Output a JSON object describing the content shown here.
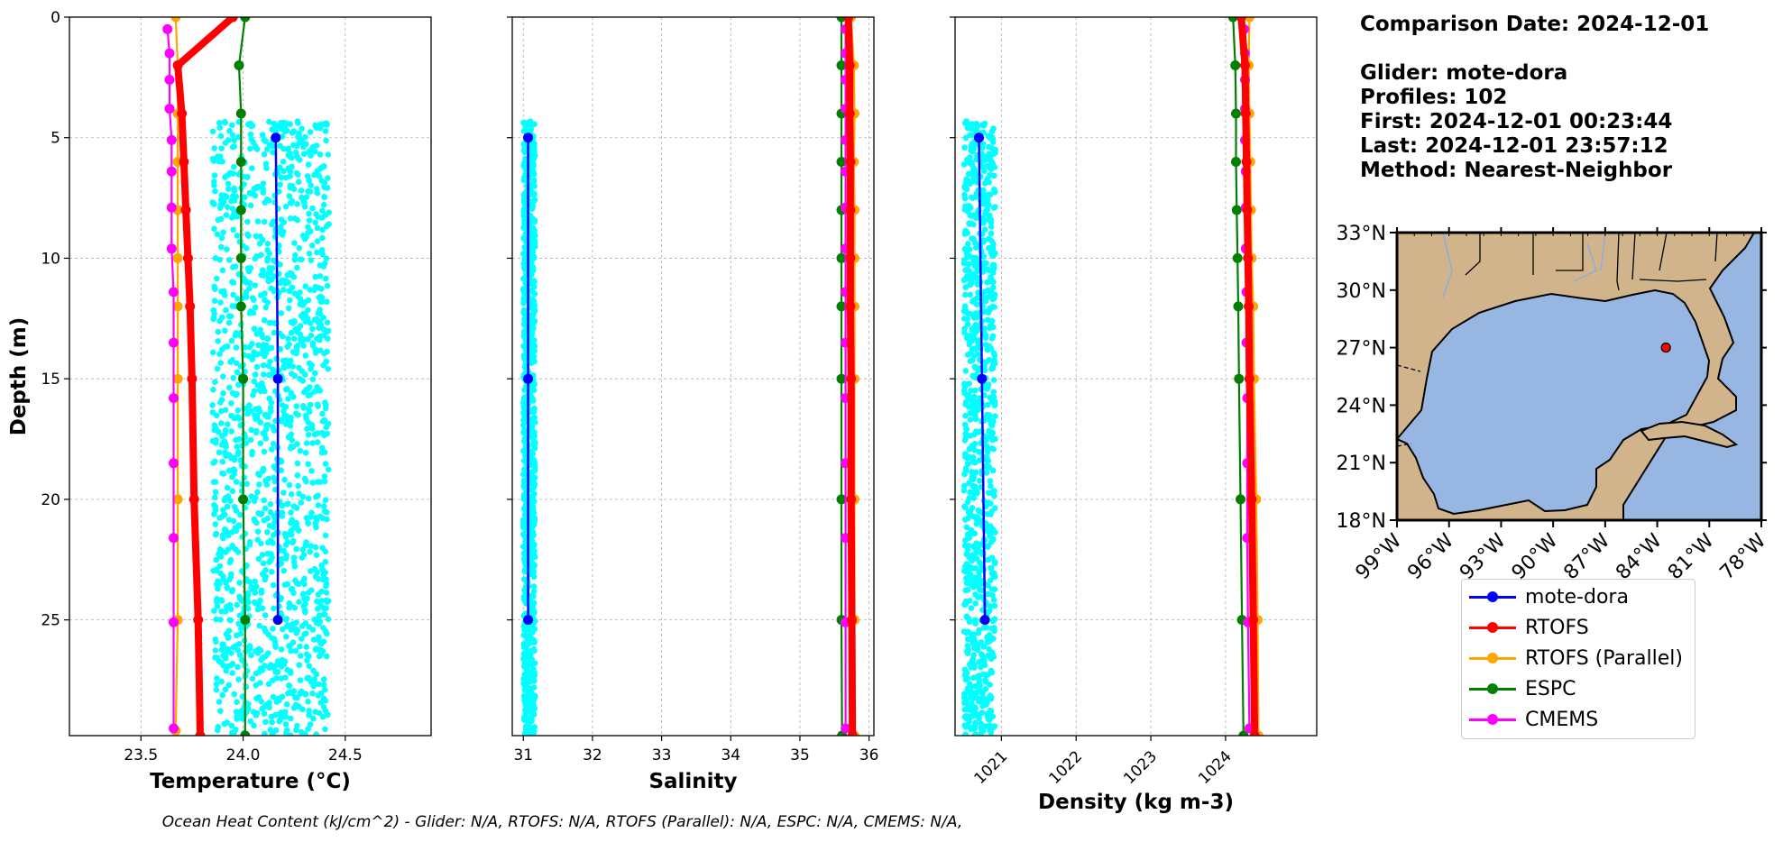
{
  "info": {
    "comparison_date": "Comparison Date: 2024-12-01",
    "glider": "Glider: mote-dora",
    "profiles": "Profiles: 102",
    "first": "First: 2024-12-01 00:23:44",
    "last": "Last: 2024-12-01 23:57:12",
    "method": "Method: Nearest-Neighbor"
  },
  "footer": "Ocean Heat Content (kJ/cm^2) - Glider: N/A,  RTOFS: N/A,  RTOFS (Parallel): N/A,  ESPC: N/A,  CMEMS: N/A,",
  "colors": {
    "glider_raw": "#00ffff",
    "mote-dora": "#0000ff",
    "RTOFS": "#ff0000",
    "RTOFS (Parallel)": "#ffa500",
    "ESPC": "#008000",
    "CMEMS": "#ff00ff",
    "land": "#d2b48c",
    "ocean": "#97b6e1",
    "grid": "#b0b0b0"
  },
  "legend": [
    {
      "label": "mote-dora",
      "color": "#0000ff"
    },
    {
      "label": "RTOFS",
      "color": "#ff0000"
    },
    {
      "label": "RTOFS (Parallel)",
      "color": "#ffa500"
    },
    {
      "label": "ESPC",
      "color": "#008000"
    },
    {
      "label": "CMEMS",
      "color": "#ff00ff"
    }
  ],
  "chart_data": [
    {
      "type": "line",
      "xlabel": "Temperature ($^o C$)",
      "xlabel_display": "Temperature (°C)",
      "ylabel": "Depth (m)",
      "xlim": [
        23.15,
        24.92
      ],
      "ylim": [
        29.8,
        0
      ],
      "xticks": [
        23.5,
        24.0,
        24.5
      ],
      "xtick_labels": [
        "23.5",
        "24.0",
        "24.5"
      ],
      "yticks": [
        0,
        5,
        10,
        15,
        20,
        25
      ],
      "ytick_labels": [
        "0",
        "5",
        "10",
        "15",
        "20",
        "25"
      ],
      "grid": true,
      "raw_scatter": {
        "name": "glider raw",
        "x_range": [
          23.85,
          24.42
        ],
        "depth_range": [
          4.3,
          29.8
        ]
      },
      "series": [
        {
          "name": "mote-dora",
          "depth": [
            5,
            15,
            25
          ],
          "values": [
            24.16,
            24.17,
            24.17
          ]
        },
        {
          "name": "RTOFS",
          "depth": [
            0,
            2,
            4,
            6,
            8,
            10,
            12,
            15,
            20,
            25,
            29.8
          ],
          "values": [
            23.95,
            23.68,
            23.7,
            23.71,
            23.72,
            23.73,
            23.74,
            23.75,
            23.76,
            23.78,
            23.79
          ]
        },
        {
          "name": "RTOFS (Parallel)",
          "depth": [
            0,
            2,
            4,
            6,
            8,
            10,
            12,
            15,
            20,
            25,
            29.6
          ],
          "values": [
            23.67,
            23.68,
            23.68,
            23.68,
            23.68,
            23.68,
            23.68,
            23.68,
            23.68,
            23.68,
            23.67
          ]
        },
        {
          "name": "ESPC",
          "depth": [
            0,
            2,
            4,
            6,
            8,
            10,
            12,
            15,
            20,
            25,
            29.8
          ],
          "values": [
            24.01,
            23.98,
            23.99,
            23.99,
            23.99,
            23.99,
            23.99,
            24.0,
            24.0,
            24.01,
            24.01
          ]
        },
        {
          "name": "CMEMS",
          "depth": [
            0.5,
            1.5,
            2.6,
            3.8,
            5.1,
            6.4,
            7.9,
            9.6,
            11.4,
            13.5,
            15.8,
            18.5,
            21.6,
            25.1,
            29.5
          ],
          "values": [
            23.63,
            23.64,
            23.64,
            23.64,
            23.65,
            23.65,
            23.65,
            23.65,
            23.66,
            23.66,
            23.66,
            23.66,
            23.66,
            23.66,
            23.66
          ]
        }
      ]
    },
    {
      "type": "line",
      "xlabel": "Salinity",
      "ylabel": "",
      "xlim": [
        30.84,
        36.07
      ],
      "ylim": [
        29.8,
        0
      ],
      "xticks": [
        31,
        32,
        33,
        34,
        35,
        36
      ],
      "xtick_labels": [
        "31",
        "32",
        "33",
        "34",
        "35",
        "36"
      ],
      "yticks": [
        0,
        5,
        10,
        15,
        20,
        25
      ],
      "grid": true,
      "raw_scatter": {
        "name": "glider raw",
        "x_range": [
          31.0,
          31.17
        ],
        "depth_range": [
          4.3,
          29.8
        ]
      },
      "series": [
        {
          "name": "mote-dora",
          "depth": [
            5,
            15,
            25
          ],
          "values": [
            31.07,
            31.07,
            31.07
          ]
        },
        {
          "name": "RTOFS",
          "depth": [
            0,
            2,
            4,
            6,
            8,
            10,
            12,
            15,
            20,
            25,
            29.8
          ],
          "values": [
            35.7,
            35.72,
            35.72,
            35.73,
            35.73,
            35.73,
            35.73,
            35.74,
            35.74,
            35.75,
            35.76
          ]
        },
        {
          "name": "RTOFS (Parallel)",
          "depth": [
            0,
            2,
            4,
            6,
            8,
            10,
            12,
            15,
            20,
            25,
            29.8
          ],
          "values": [
            35.74,
            35.78,
            35.79,
            35.78,
            35.79,
            35.79,
            35.79,
            35.79,
            35.79,
            35.79,
            35.79
          ]
        },
        {
          "name": "ESPC",
          "depth": [
            0,
            2,
            4,
            6,
            8,
            10,
            12,
            15,
            20,
            25,
            29.8
          ],
          "values": [
            35.6,
            35.6,
            35.6,
            35.6,
            35.6,
            35.6,
            35.6,
            35.6,
            35.6,
            35.6,
            35.61
          ]
        },
        {
          "name": "CMEMS",
          "depth": [
            0.5,
            1.5,
            2.6,
            3.8,
            5.1,
            6.4,
            7.9,
            9.6,
            11.4,
            13.5,
            15.8,
            18.5,
            21.6,
            25.1,
            29.5
          ],
          "values": [
            35.66,
            35.66,
            35.66,
            35.66,
            35.66,
            35.66,
            35.66,
            35.66,
            35.66,
            35.66,
            35.66,
            35.66,
            35.66,
            35.66,
            35.66
          ]
        }
      ]
    },
    {
      "type": "line",
      "xlabel": "Density (kg m-3)",
      "ylabel": "",
      "xlim": [
        1020.38,
        1025.22
      ],
      "ylim": [
        29.8,
        0
      ],
      "xticks": [
        1021,
        1022,
        1023,
        1024
      ],
      "xtick_labels": [
        "1021",
        "1022",
        "1023",
        "1024"
      ],
      "yticks": [
        0,
        5,
        10,
        15,
        20,
        25
      ],
      "grid": true,
      "raw_scatter": {
        "name": "glider raw",
        "x_range": [
          1020.5,
          1020.92
        ],
        "depth_range": [
          4.3,
          29.8
        ]
      },
      "series": [
        {
          "name": "mote-dora",
          "depth": [
            5,
            15,
            25
          ],
          "values": [
            1020.7,
            1020.74,
            1020.78
          ]
        },
        {
          "name": "RTOFS",
          "depth": [
            0,
            2,
            4,
            6,
            8,
            10,
            12,
            15,
            20,
            25,
            29.8
          ],
          "values": [
            1024.21,
            1024.26,
            1024.27,
            1024.28,
            1024.29,
            1024.3,
            1024.31,
            1024.32,
            1024.35,
            1024.37,
            1024.39
          ]
        },
        {
          "name": "RTOFS (Parallel)",
          "depth": [
            0,
            2,
            4,
            6,
            8,
            10,
            12,
            15,
            20,
            25,
            29.8
          ],
          "values": [
            1024.32,
            1024.31,
            1024.32,
            1024.33,
            1024.34,
            1024.35,
            1024.37,
            1024.38,
            1024.41,
            1024.43,
            1024.44
          ]
        },
        {
          "name": "ESPC",
          "depth": [
            0,
            2,
            4,
            6,
            8,
            10,
            12,
            15,
            20,
            25,
            29.8
          ],
          "values": [
            1024.1,
            1024.13,
            1024.14,
            1024.14,
            1024.15,
            1024.16,
            1024.17,
            1024.18,
            1024.2,
            1024.22,
            1024.24
          ]
        },
        {
          "name": "CMEMS",
          "depth": [
            0.5,
            1.5,
            2.6,
            3.8,
            5.1,
            6.4,
            7.9,
            9.6,
            11.4,
            13.5,
            15.8,
            18.5,
            21.6,
            25.1,
            29.5
          ],
          "values": [
            1024.25,
            1024.26,
            1024.26,
            1024.26,
            1024.26,
            1024.27,
            1024.27,
            1024.27,
            1024.28,
            1024.28,
            1024.29,
            1024.29,
            1024.29,
            1024.3,
            1024.32
          ]
        }
      ]
    },
    {
      "type": "map",
      "region": "Gulf of Mexico",
      "lon_range": [
        -99,
        -78
      ],
      "lat_range": [
        18,
        33
      ],
      "xtick_labels": [
        "99°W",
        "96°W",
        "93°W",
        "90°W",
        "87°W",
        "84°W",
        "81°W",
        "78°W"
      ],
      "ytick_labels": [
        "18°N",
        "21°N",
        "24°N",
        "27°N",
        "30°N",
        "33°N"
      ],
      "marker": {
        "lon": -83.5,
        "lat": 27.0,
        "color": "#ff0000"
      }
    }
  ]
}
